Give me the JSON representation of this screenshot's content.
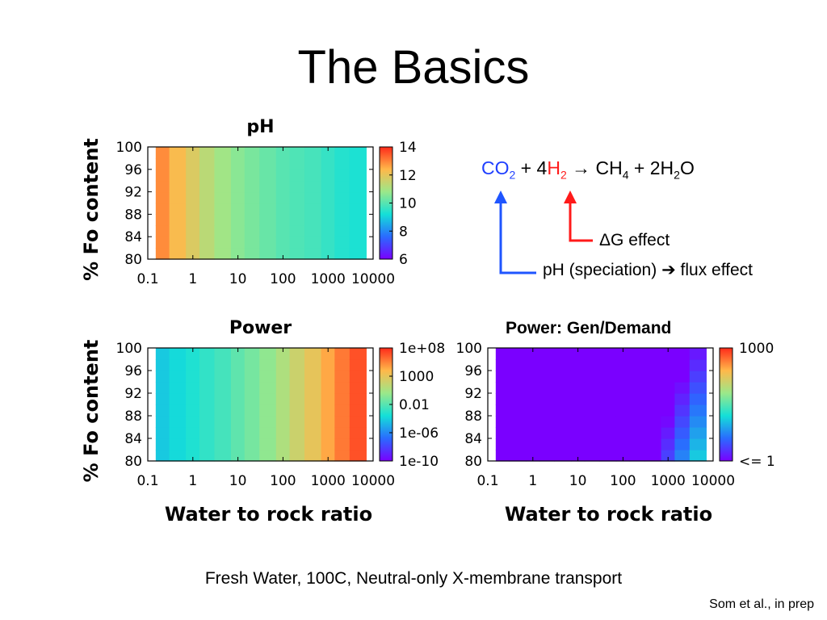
{
  "slide": {
    "title": "The Basics",
    "caption": "Fresh Water, 100C, Neutral-only X-membrane transport",
    "credit": "Som et al., in prep"
  },
  "equation": {
    "co2": "CO",
    "co2_sub": "2",
    "plus1": " + 4",
    "h2": "H",
    "h2_sub": "2",
    "arrow": " → CH",
    "ch4_sub": "4",
    "plus2": " + 2H",
    "h2o_sub": "2",
    "h2o_tail": "O"
  },
  "annotations": {
    "dg_effect": "ΔG effect",
    "ph_effect_a": "pH (speciation)",
    "ph_effect_arrow": "➔",
    "ph_effect_b": " flux effect"
  },
  "colors": {
    "co2": "#1f3fff",
    "h2": "#ff1a1a",
    "arrow_blue": "#1f55ff",
    "arrow_red": "#ff1a1a"
  },
  "chart_data": [
    {
      "type": "heatmap",
      "title": "pH",
      "xlabel": "",
      "ylabel": "% Fo content",
      "x_scale": "log",
      "x_ticks": [
        "0.1",
        "1",
        "10",
        "100",
        "1000",
        "10000"
      ],
      "y_ticks": [
        "100",
        "96",
        "92",
        "88",
        "84",
        "80"
      ],
      "xlim": [
        0.1,
        10000
      ],
      "ylim": [
        80,
        100
      ],
      "colorbar": {
        "ticks": [
          "14",
          "12",
          "10",
          "8",
          "6"
        ],
        "range": [
          6,
          14
        ]
      },
      "x_columns": [
        0.2,
        0.5,
        1,
        2,
        5,
        10,
        20,
        50,
        100,
        200,
        500,
        1000,
        2000,
        5000
      ],
      "z_by_column": [
        12.9,
        12.3,
        11.8,
        11.3,
        10.9,
        10.6,
        10.4,
        10.2,
        10.0,
        9.9,
        9.8,
        9.6,
        9.4,
        9.3
      ]
    },
    {
      "type": "heatmap",
      "title": "Power",
      "xlabel": "Water to rock ratio",
      "ylabel": "% Fo content",
      "x_scale": "log",
      "x_ticks": [
        "0.1",
        "1",
        "10",
        "100",
        "1000",
        "10000"
      ],
      "y_ticks": [
        "100",
        "96",
        "92",
        "88",
        "84",
        "80"
      ],
      "xlim": [
        0.1,
        10000
      ],
      "ylim": [
        80,
        100
      ],
      "colorbar": {
        "ticks": [
          "1e+08",
          "1000",
          "0.01",
          "1e-06",
          "1e-10"
        ],
        "range": [
          "1e-10",
          "1e+08"
        ]
      },
      "x_columns": [
        0.2,
        0.5,
        1,
        2,
        5,
        10,
        20,
        50,
        100,
        200,
        500,
        1000,
        2000,
        5000
      ],
      "z_log10_by_column": [
        -3.5,
        -3.0,
        -2.5,
        -2.0,
        -1.5,
        -0.8,
        -0.2,
        0.5,
        1.5,
        2.5,
        3.5,
        4.8,
        6.0,
        7.0
      ]
    },
    {
      "type": "heatmap",
      "title": "Power: Gen/Demand",
      "xlabel": "Water to rock ratio",
      "ylabel": "",
      "x_scale": "log",
      "x_ticks": [
        "0.1",
        "1",
        "10",
        "100",
        "1000",
        "10000"
      ],
      "y_ticks": [
        "100",
        "96",
        "92",
        "88",
        "84",
        "80"
      ],
      "xlim": [
        0.1,
        10000
      ],
      "ylim": [
        80,
        100
      ],
      "colorbar": {
        "ticks": [
          "1000",
          "<= 1"
        ],
        "range": [
          "1",
          "1000"
        ]
      },
      "note": "Ratio <= 1 everywhere except a region at water/rock > ~1000 and low Fo content where it rises toward ~10-100"
    }
  ]
}
